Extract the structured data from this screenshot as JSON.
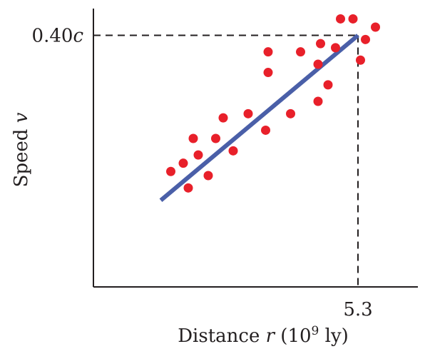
{
  "chart_data": {
    "type": "scatter",
    "title": "",
    "xlabel_main": "Distance ",
    "xlabel_var": "r",
    "xlabel_open": " (10",
    "xlabel_exp": "9",
    "xlabel_close": " ly)",
    "ylabel_main": "Speed ",
    "ylabel_var": "v",
    "reference": {
      "x": 5.3,
      "x_label": "5.3",
      "y": 0.4,
      "y_label_num": "0.40",
      "y_label_unit": "c"
    },
    "xlim": [
      0,
      6.5
    ],
    "ylim": [
      -0.21,
      0.465
    ],
    "grid": false,
    "legend": "none",
    "fit_line": {
      "x": [
        1.35,
        5.3
      ],
      "y": [
        0.0,
        0.4
      ],
      "color": "#4a5fa8"
    },
    "point_color": "#e8202a",
    "points": [
      [
        1.55,
        0.07
      ],
      [
        1.8,
        0.09
      ],
      [
        1.9,
        0.03
      ],
      [
        2.0,
        0.15
      ],
      [
        2.1,
        0.11
      ],
      [
        2.3,
        0.06
      ],
      [
        2.45,
        0.15
      ],
      [
        2.6,
        0.2
      ],
      [
        2.8,
        0.12
      ],
      [
        3.1,
        0.21
      ],
      [
        3.45,
        0.17
      ],
      [
        3.5,
        0.31
      ],
      [
        3.5,
        0.36
      ],
      [
        3.95,
        0.21
      ],
      [
        4.15,
        0.36
      ],
      [
        4.5,
        0.24
      ],
      [
        4.5,
        0.33
      ],
      [
        4.55,
        0.38
      ],
      [
        4.7,
        0.28
      ],
      [
        4.85,
        0.37
      ],
      [
        4.95,
        0.44
      ],
      [
        5.2,
        0.44
      ],
      [
        5.35,
        0.34
      ],
      [
        5.45,
        0.39
      ],
      [
        5.65,
        0.42
      ]
    ]
  }
}
